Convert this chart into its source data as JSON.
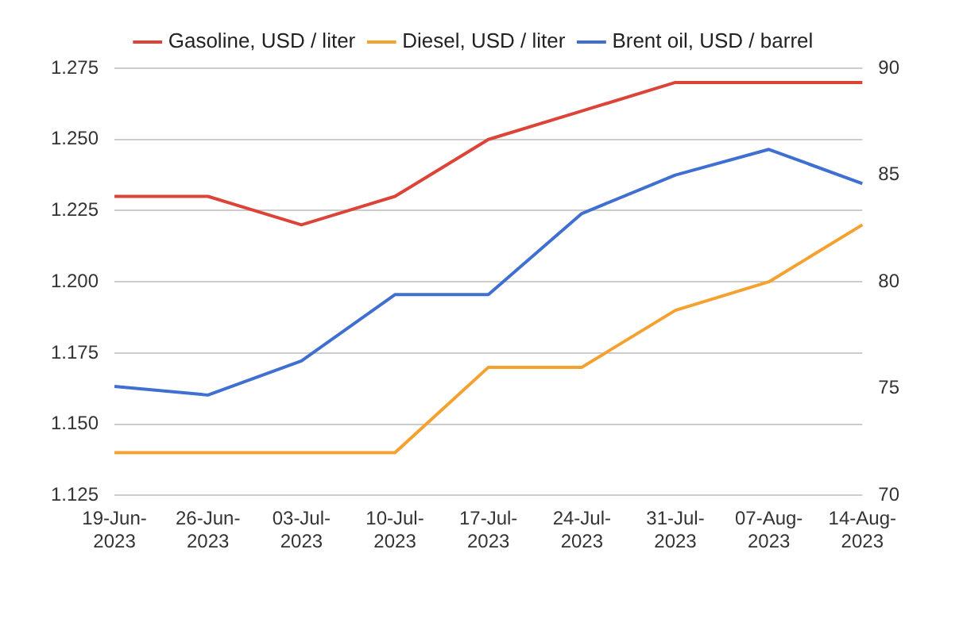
{
  "chart_data": {
    "type": "line",
    "categories": [
      "19-Jun-2023",
      "26-Jun-2023",
      "03-Jul-2023",
      "10-Jul-2023",
      "17-Jul-2023",
      "24-Jul-2023",
      "31-Jul-2023",
      "07-Aug-2023",
      "14-Aug-2023"
    ],
    "series": [
      {
        "name": "Gasoline, USD / liter",
        "color": "#db4437",
        "values": [
          1.23,
          1.23,
          1.22,
          1.23,
          1.25,
          1.26,
          1.27,
          1.27,
          1.27
        ]
      },
      {
        "name": "Diesel, USD / liter",
        "color": "#f4a130",
        "values": [
          1.14,
          1.14,
          1.14,
          1.14,
          1.17,
          1.17,
          1.19,
          1.2,
          1.22
        ]
      },
      {
        "name": "Brent oil, USD / barrel",
        "color": "#3f6fd0",
        "axis": "y2",
        "values": [
          75.1,
          74.7,
          76.3,
          79.4,
          79.4,
          83.2,
          85.0,
          86.2,
          84.6
        ]
      }
    ],
    "ylim": [
      1.125,
      1.275
    ],
    "yticks": [
      {
        "value": 1.125,
        "label": "1.125"
      },
      {
        "value": 1.15,
        "label": "1.150"
      },
      {
        "value": 1.175,
        "label": "1.175"
      },
      {
        "value": 1.2,
        "label": "1.200"
      },
      {
        "value": 1.225,
        "label": "1.225"
      },
      {
        "value": 1.25,
        "label": "1.250"
      },
      {
        "value": 1.275,
        "label": "1.275"
      }
    ],
    "y2lim": [
      70,
      90
    ],
    "y2ticks": [
      70,
      75,
      80,
      85,
      90
    ],
    "grid": "y",
    "legend": "top",
    "marker": "none",
    "line_style": "solid"
  }
}
